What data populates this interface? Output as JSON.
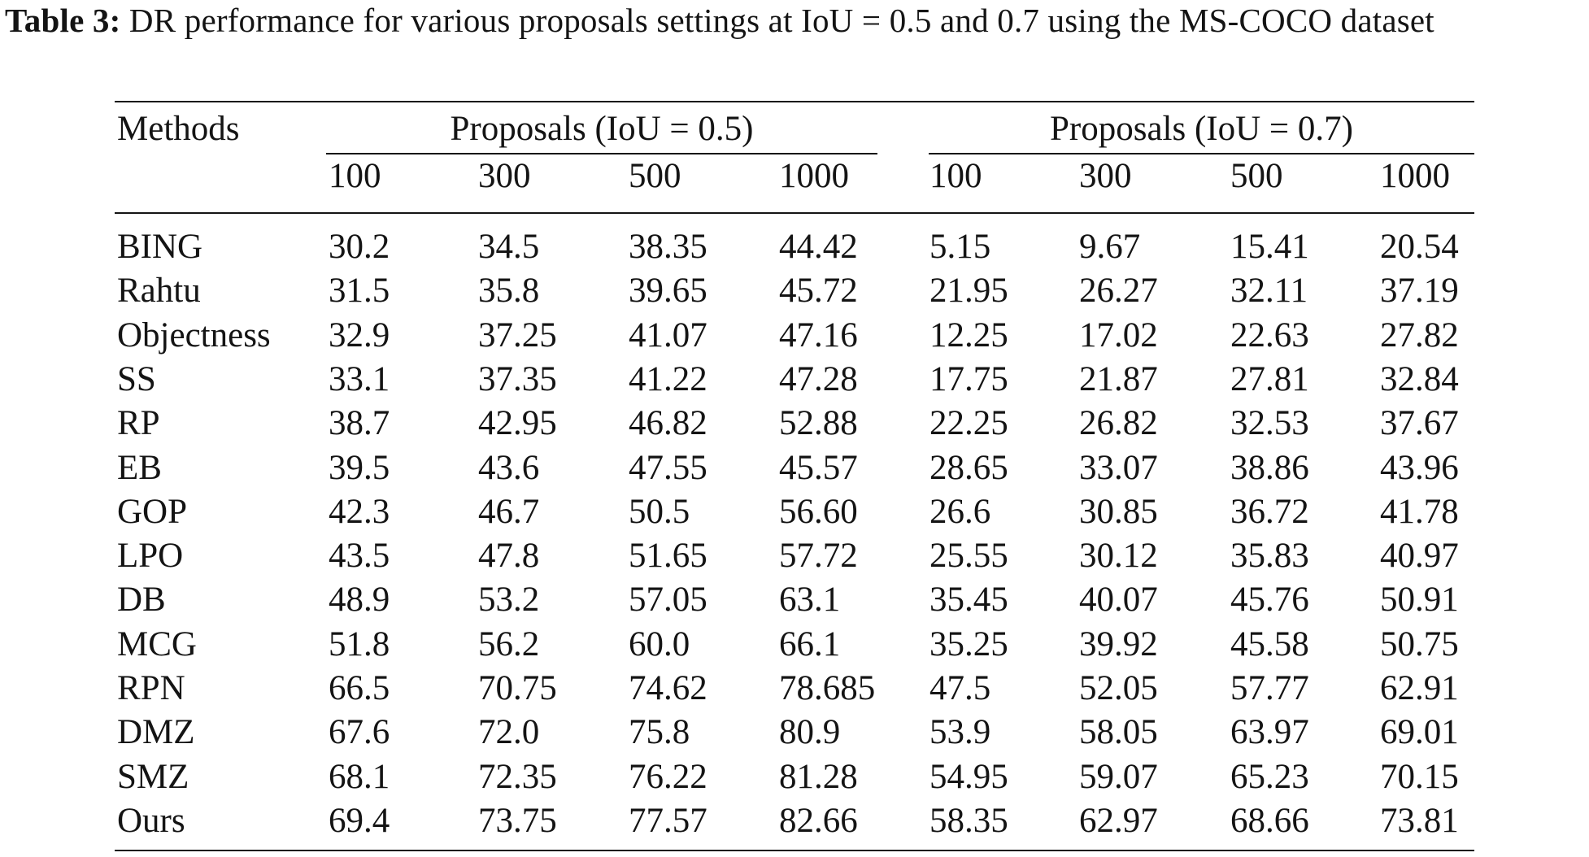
{
  "caption": {
    "label": "Table 3:",
    "text": " DR performance for various proposals settings at IoU = 0.5 and 0.7 using the MS-COCO dataset"
  },
  "table": {
    "method_header": "Methods",
    "groups": [
      "Proposals (IoU = 0.5)",
      "Proposals (IoU = 0.7)"
    ],
    "columns": [
      "100",
      "300",
      "500",
      "1000",
      "100",
      "300",
      "500",
      "1000"
    ],
    "rows": [
      {
        "method": "BING",
        "values": [
          "30.2",
          "34.5",
          "38.35",
          "44.42",
          "5.15",
          "9.67",
          "15.41",
          "20.54"
        ]
      },
      {
        "method": "Rahtu",
        "values": [
          "31.5",
          "35.8",
          "39.65",
          "45.72",
          "21.95",
          "26.27",
          "32.11",
          "37.19"
        ]
      },
      {
        "method": "Objectness",
        "values": [
          "32.9",
          "37.25",
          "41.07",
          "47.16",
          "12.25",
          "17.02",
          "22.63",
          "27.82"
        ]
      },
      {
        "method": "SS",
        "values": [
          "33.1",
          "37.35",
          "41.22",
          "47.28",
          "17.75",
          "21.87",
          "27.81",
          "32.84"
        ]
      },
      {
        "method": "RP",
        "values": [
          "38.7",
          "42.95",
          "46.82",
          "52.88",
          "22.25",
          "26.82",
          "32.53",
          "37.67"
        ]
      },
      {
        "method": "EB",
        "values": [
          "39.5",
          "43.6",
          "47.55",
          "45.57",
          "28.65",
          "33.07",
          "38.86",
          "43.96"
        ]
      },
      {
        "method": "GOP",
        "values": [
          "42.3",
          "46.7",
          "50.5",
          "56.60",
          "26.6",
          "30.85",
          "36.72",
          "41.78"
        ]
      },
      {
        "method": "LPO",
        "values": [
          "43.5",
          "47.8",
          "51.65",
          "57.72",
          "25.55",
          "30.12",
          "35.83",
          "40.97"
        ]
      },
      {
        "method": "DB",
        "values": [
          "48.9",
          "53.2",
          "57.05",
          "63.1",
          "35.45",
          "40.07",
          "45.76",
          "50.91"
        ]
      },
      {
        "method": "MCG",
        "values": [
          "51.8",
          "56.2",
          "60.0",
          "66.1",
          "35.25",
          "39.92",
          "45.58",
          "50.75"
        ]
      },
      {
        "method": "RPN",
        "values": [
          "66.5",
          "70.75",
          "74.62",
          "78.685",
          "47.5",
          "52.05",
          "57.77",
          "62.91"
        ]
      },
      {
        "method": "DMZ",
        "values": [
          "67.6",
          "72.0",
          "75.8",
          "80.9",
          "53.9",
          "58.05",
          "63.97",
          "69.01"
        ]
      },
      {
        "method": "SMZ",
        "values": [
          "68.1",
          "72.35",
          "76.22",
          "81.28",
          "54.95",
          "59.07",
          "65.23",
          "70.15"
        ]
      },
      {
        "method": "Ours",
        "values": [
          "69.4",
          "73.75",
          "77.57",
          "82.66",
          "58.35",
          "62.97",
          "68.66",
          "73.81"
        ]
      }
    ]
  }
}
